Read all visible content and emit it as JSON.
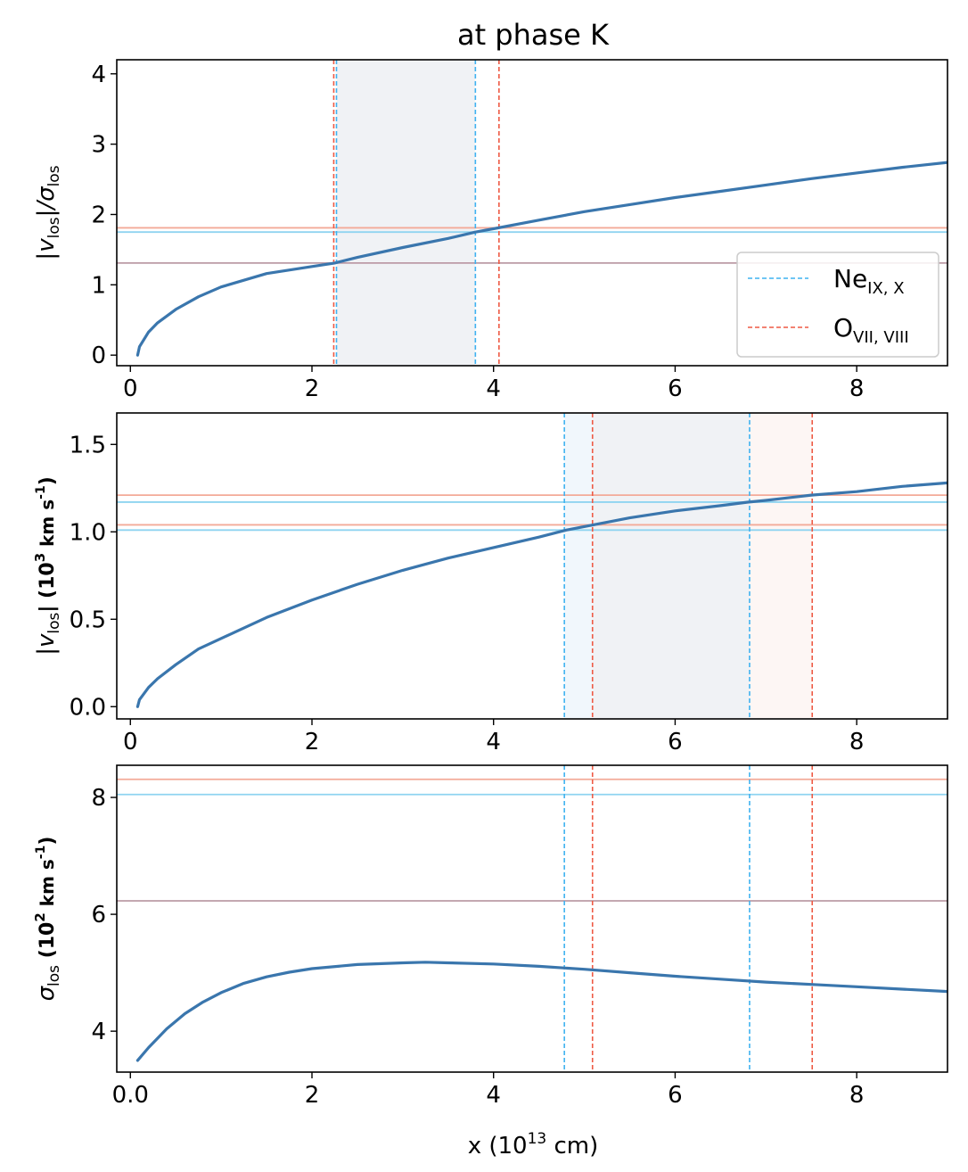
{
  "title": "at phase K",
  "colors": {
    "curve": "#3a76ad",
    "ne_line": "#3fb2f0",
    "o_line": "#ee5a44",
    "ne_hline": "#8fd4f0",
    "o_hline": "#f3aa98",
    "mixed_hline": "#bc9ba6",
    "band_gray": "#f0f2f5",
    "band_blue": "#f1f7fc",
    "band_red": "#fdf6f4"
  },
  "legend": {
    "ne": {
      "base": "Ne",
      "sub": "IX, X"
    },
    "o": {
      "base": "O",
      "sub": "VII, VIII"
    }
  },
  "chart_data": [
    {
      "id": "top",
      "type": "line",
      "ylabel": {
        "parts": [
          "|v",
          "los",
          "|/σ",
          "los"
        ]
      },
      "xlim": [
        -0.15,
        9.0
      ],
      "ylim": [
        -0.15,
        4.2
      ],
      "xticks": [
        0,
        2,
        4,
        6,
        8
      ],
      "xtick_labels": [
        "0",
        "2",
        "4",
        "6",
        "8"
      ],
      "yticks": [
        0,
        1,
        2,
        3,
        4
      ],
      "ytick_labels": [
        "0",
        "1",
        "2",
        "3",
        "4"
      ],
      "curve": {
        "x": [
          0.08,
          0.1,
          0.2,
          0.3,
          0.5,
          0.75,
          1.0,
          1.5,
          2.0,
          2.25,
          2.5,
          3.0,
          3.5,
          3.8,
          4.05,
          4.5,
          5.0,
          5.5,
          6.0,
          6.5,
          7.0,
          7.5,
          8.0,
          8.5,
          9.0
        ],
        "y": [
          0.0,
          0.12,
          0.33,
          0.46,
          0.65,
          0.83,
          0.97,
          1.16,
          1.26,
          1.31,
          1.39,
          1.53,
          1.66,
          1.75,
          1.81,
          1.92,
          2.04,
          2.14,
          2.24,
          2.33,
          2.42,
          2.51,
          2.59,
          2.67,
          2.74
        ]
      },
      "vlines": [
        {
          "series": "ne",
          "x": 2.27
        },
        {
          "series": "ne",
          "x": 3.8
        },
        {
          "series": "o",
          "x": 2.24
        },
        {
          "series": "o",
          "x": 4.06
        }
      ],
      "hlines": [
        {
          "series": "o",
          "y": 1.81
        },
        {
          "series": "ne",
          "y": 1.75
        },
        {
          "series": "mixed",
          "y": 1.31
        }
      ],
      "bands": [
        {
          "color": "gray",
          "x": [
            2.27,
            3.8
          ]
        }
      ],
      "legend_position": "lower right"
    },
    {
      "id": "middle",
      "type": "line",
      "ylabel": {
        "parts": [
          "|v",
          "los",
          "|  (10",
          "3",
          " km s",
          "-1",
          ")"
        ]
      },
      "xlim": [
        -0.15,
        9.0
      ],
      "ylim": [
        -0.07,
        1.68
      ],
      "xticks": [
        0,
        2,
        4,
        6,
        8
      ],
      "xtick_labels": [
        "0",
        "2",
        "4",
        "6",
        "8"
      ],
      "yticks": [
        0.0,
        0.5,
        1.0,
        1.5
      ],
      "ytick_labels": [
        "0.0",
        "0.5",
        "1.0",
        "1.5"
      ],
      "curve": {
        "x": [
          0.08,
          0.1,
          0.2,
          0.3,
          0.5,
          0.75,
          1.0,
          1.5,
          2.0,
          2.5,
          3.0,
          3.5,
          4.0,
          4.5,
          4.8,
          5.1,
          5.5,
          6.0,
          6.5,
          6.8,
          7.0,
          7.5,
          8.0,
          8.5,
          9.0
        ],
        "y": [
          0.0,
          0.04,
          0.11,
          0.16,
          0.24,
          0.33,
          0.39,
          0.51,
          0.61,
          0.7,
          0.78,
          0.85,
          0.91,
          0.97,
          1.01,
          1.04,
          1.08,
          1.12,
          1.15,
          1.17,
          1.18,
          1.21,
          1.23,
          1.26,
          1.28
        ]
      },
      "vlines": [
        {
          "series": "ne",
          "x": 4.78
        },
        {
          "series": "ne",
          "x": 6.82
        },
        {
          "series": "o",
          "x": 5.09
        },
        {
          "series": "o",
          "x": 7.51
        }
      ],
      "hlines": [
        {
          "series": "o",
          "y": 1.21
        },
        {
          "series": "ne",
          "y": 1.17
        },
        {
          "series": "o",
          "y": 1.04
        },
        {
          "series": "ne",
          "y": 1.01
        }
      ],
      "bands": [
        {
          "color": "blue",
          "x": [
            4.78,
            5.09
          ]
        },
        {
          "color": "gray",
          "x": [
            5.09,
            6.82
          ]
        },
        {
          "color": "red",
          "x": [
            6.82,
            7.51
          ]
        }
      ]
    },
    {
      "id": "bottom",
      "type": "line",
      "ylabel": {
        "parts": [
          "σ",
          "los",
          "  (10",
          "2",
          " km s",
          "-1",
          ")"
        ]
      },
      "xlabel": {
        "parts": [
          "x (10",
          "13",
          " cm)"
        ]
      },
      "xlim": [
        -0.15,
        9.0
      ],
      "ylim": [
        3.3,
        8.55
      ],
      "xticks": [
        0,
        2,
        4,
        6,
        8
      ],
      "xtick_labels": [
        "0.0",
        "2",
        "4",
        "6",
        "8"
      ],
      "yticks": [
        4,
        6,
        8
      ],
      "ytick_labels": [
        "4",
        "6",
        "8"
      ],
      "curve": {
        "x": [
          0.08,
          0.2,
          0.4,
          0.6,
          0.8,
          1.0,
          1.25,
          1.5,
          1.75,
          2.0,
          2.5,
          3.0,
          3.25,
          3.5,
          4.0,
          4.5,
          5.0,
          5.5,
          6.0,
          6.5,
          7.0,
          7.5,
          8.0,
          8.5,
          9.0
        ],
        "y": [
          3.5,
          3.72,
          4.04,
          4.3,
          4.5,
          4.66,
          4.82,
          4.93,
          5.01,
          5.07,
          5.14,
          5.17,
          5.18,
          5.17,
          5.15,
          5.11,
          5.06,
          5.0,
          4.94,
          4.89,
          4.84,
          4.8,
          4.76,
          4.72,
          4.68
        ]
      },
      "vlines": [
        {
          "series": "ne",
          "x": 4.78
        },
        {
          "series": "ne",
          "x": 6.82
        },
        {
          "series": "o",
          "x": 5.09
        },
        {
          "series": "o",
          "x": 7.51
        }
      ],
      "hlines": [
        {
          "series": "o",
          "y": 8.31
        },
        {
          "series": "ne",
          "y": 8.05
        },
        {
          "series": "mixed",
          "y": 6.23
        }
      ],
      "bands": []
    }
  ]
}
